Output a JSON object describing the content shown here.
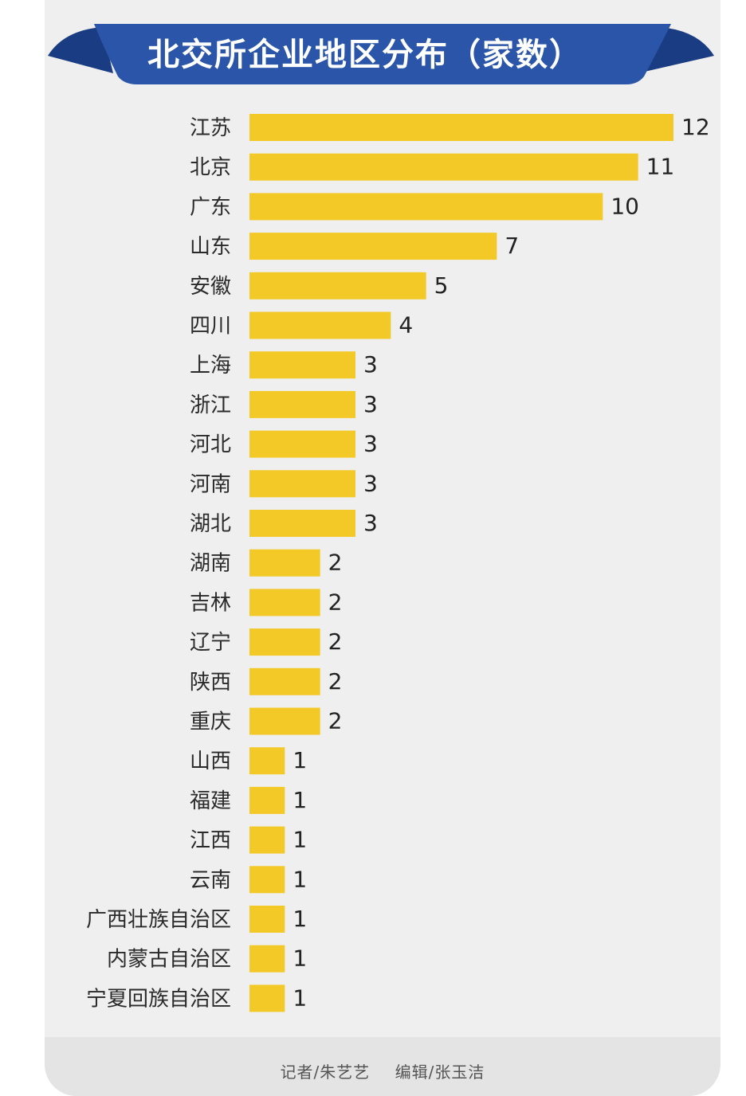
{
  "colors": {
    "banner": "#2a55a8",
    "banner_dark": "#1a3c82",
    "bar": "#f3c928",
    "label": "#2a2a2a",
    "value": "#222222"
  },
  "footer": {
    "reporter": "记者/朱艺艺",
    "editor": "编辑/张玉洁"
  },
  "chart_data": {
    "type": "bar",
    "orientation": "horizontal",
    "title": "北交所企业地区分布（家数）",
    "categories": [
      "江苏",
      "北京",
      "广东",
      "山东",
      "安徽",
      "四川",
      "上海",
      "浙江",
      "河北",
      "河南",
      "湖北",
      "湖南",
      "吉林",
      "辽宁",
      "陕西",
      "重庆",
      "山西",
      "福建",
      "江西",
      "云南",
      "广西壮族自治区",
      "内蒙古自治区",
      "宁夏回族自治区"
    ],
    "values": [
      12,
      11,
      10,
      7,
      5,
      4,
      3,
      3,
      3,
      3,
      3,
      2,
      2,
      2,
      2,
      2,
      1,
      1,
      1,
      1,
      1,
      1,
      1
    ],
    "xlim": [
      0,
      12
    ],
    "grid": false,
    "data_labels": true
  }
}
